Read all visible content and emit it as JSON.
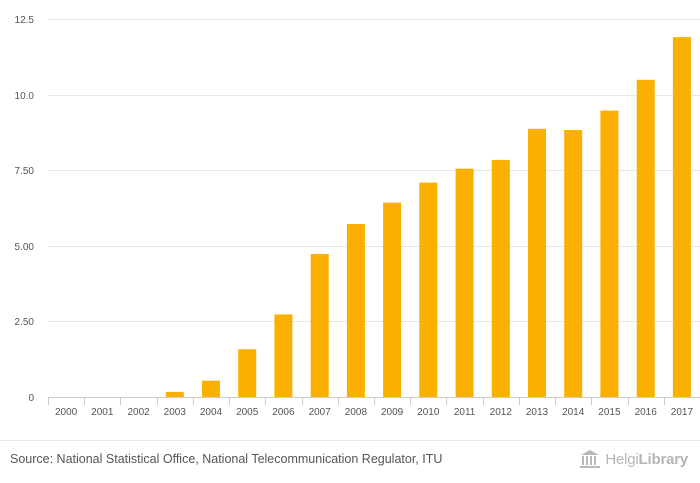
{
  "chart_data": {
    "type": "bar",
    "title": "",
    "xlabel": "",
    "ylabel": "",
    "categories": [
      "2000",
      "2001",
      "2002",
      "2003",
      "2004",
      "2005",
      "2006",
      "2007",
      "2008",
      "2009",
      "2010",
      "2011",
      "2012",
      "2013",
      "2014",
      "2015",
      "2016",
      "2017"
    ],
    "values": [
      0,
      0,
      0,
      0.17,
      0.54,
      1.58,
      2.73,
      4.73,
      5.72,
      6.43,
      7.09,
      7.55,
      7.84,
      8.87,
      8.83,
      9.47,
      10.49,
      11.9
    ],
    "ylim": [
      0,
      12.5
    ],
    "yticks": [
      0,
      2.5,
      5,
      7.5,
      10,
      12.5
    ],
    "ytick_labels": [
      "0",
      "2.50",
      "5.00",
      "7.50",
      "10.0",
      "12.5"
    ],
    "grid": true,
    "bar_color": "#f9b000"
  },
  "footer": {
    "source": "Source: National Statistical Office, National Telecommunication Regulator, ITU",
    "logo_brand_light": "Helgi",
    "logo_brand_bold": "Library",
    "logo_icon": "library-building-icon"
  },
  "colors": {
    "grid": "#e6e6e6",
    "text": "#555555",
    "logo": "#b5b5b5"
  }
}
